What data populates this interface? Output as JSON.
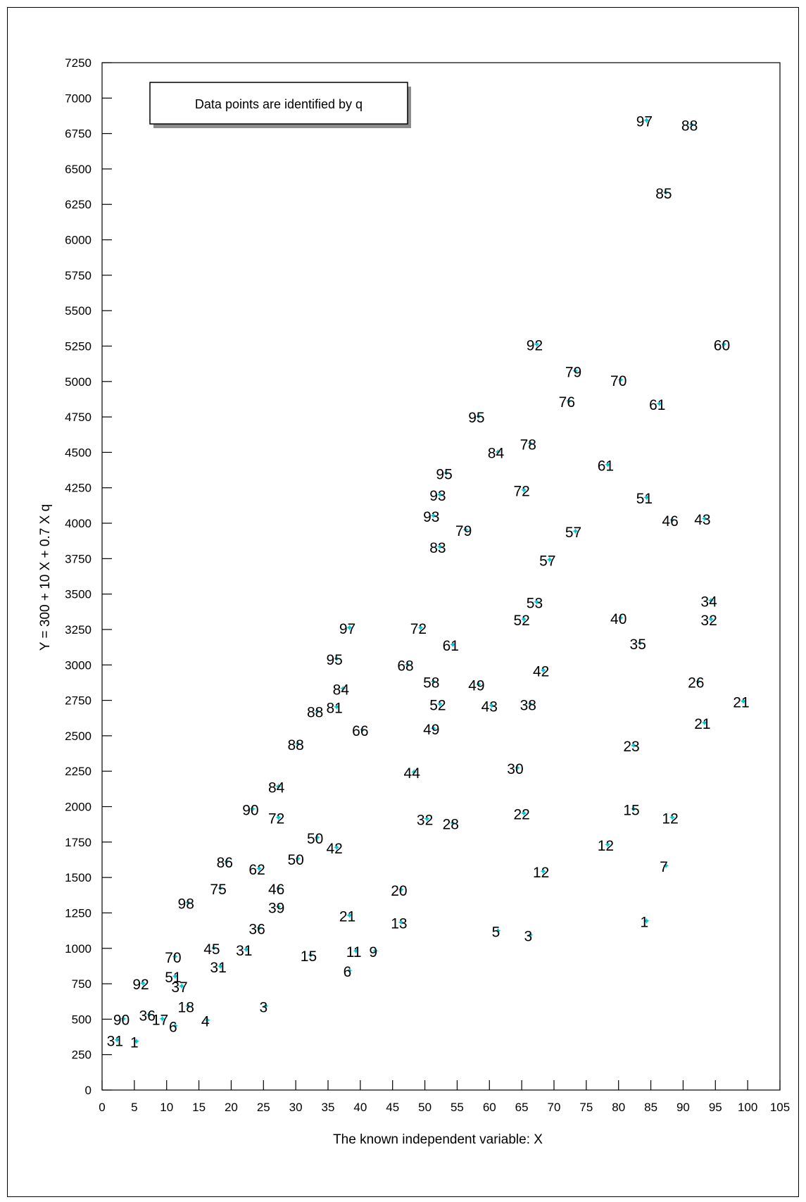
{
  "chart_data": {
    "type": "scatter",
    "title": "",
    "xlabel": "The known independent variable: X",
    "ylabel": "Y = 300 + 10 X + 0.7 X q",
    "xlim": [
      0,
      105
    ],
    "ylim": [
      0,
      7250
    ],
    "x_ticks": [
      0,
      5,
      10,
      15,
      20,
      25,
      30,
      35,
      40,
      45,
      50,
      55,
      60,
      65,
      70,
      75,
      80,
      85,
      90,
      95,
      100,
      105
    ],
    "y_ticks": [
      0,
      250,
      500,
      750,
      1000,
      1250,
      1500,
      1750,
      2000,
      2250,
      2500,
      2750,
      3000,
      3250,
      3500,
      3750,
      4000,
      4250,
      4500,
      4750,
      5000,
      5250,
      5500,
      5750,
      6000,
      6250,
      6500,
      6750,
      7000,
      7250
    ],
    "grid": false,
    "legend": {
      "text": "Data points are identified by q",
      "placement": "top-left"
    },
    "marker_color": "#00c8d8",
    "points": [
      {
        "x": 84,
        "y": 6840,
        "label": "97"
      },
      {
        "x": 91,
        "y": 6810,
        "label": "88"
      },
      {
        "x": 87,
        "y": 6330,
        "label": "85"
      },
      {
        "x": 67,
        "y": 5260,
        "label": "92"
      },
      {
        "x": 96,
        "y": 5260,
        "label": "60"
      },
      {
        "x": 73,
        "y": 5070,
        "label": "79"
      },
      {
        "x": 80,
        "y": 5010,
        "label": "70"
      },
      {
        "x": 72,
        "y": 4860,
        "label": "76"
      },
      {
        "x": 86,
        "y": 4840,
        "label": "61"
      },
      {
        "x": 58,
        "y": 4750,
        "label": "95"
      },
      {
        "x": 66,
        "y": 4560,
        "label": "78"
      },
      {
        "x": 61,
        "y": 4500,
        "label": "84"
      },
      {
        "x": 78,
        "y": 4410,
        "label": "61"
      },
      {
        "x": 53,
        "y": 4350,
        "label": "95"
      },
      {
        "x": 65,
        "y": 4230,
        "label": "72"
      },
      {
        "x": 52,
        "y": 4200,
        "label": "93"
      },
      {
        "x": 84,
        "y": 4180,
        "label": "51"
      },
      {
        "x": 51,
        "y": 4050,
        "label": "93"
      },
      {
        "x": 88,
        "y": 4020,
        "label": "46"
      },
      {
        "x": 93,
        "y": 4030,
        "label": "43"
      },
      {
        "x": 56,
        "y": 3950,
        "label": "79"
      },
      {
        "x": 73,
        "y": 3940,
        "label": "57"
      },
      {
        "x": 52,
        "y": 3830,
        "label": "83"
      },
      {
        "x": 69,
        "y": 3740,
        "label": "57"
      },
      {
        "x": 67,
        "y": 3440,
        "label": "53"
      },
      {
        "x": 94,
        "y": 3450,
        "label": "34"
      },
      {
        "x": 65,
        "y": 3320,
        "label": "52"
      },
      {
        "x": 80,
        "y": 3330,
        "label": "40"
      },
      {
        "x": 94,
        "y": 3320,
        "label": "32"
      },
      {
        "x": 38,
        "y": 3260,
        "label": "97"
      },
      {
        "x": 49,
        "y": 3260,
        "label": "72"
      },
      {
        "x": 83,
        "y": 3150,
        "label": "35"
      },
      {
        "x": 54,
        "y": 3140,
        "label": "61"
      },
      {
        "x": 36,
        "y": 3040,
        "label": "95"
      },
      {
        "x": 47,
        "y": 3000,
        "label": "68"
      },
      {
        "x": 68,
        "y": 2960,
        "label": "42"
      },
      {
        "x": 92,
        "y": 2880,
        "label": "26"
      },
      {
        "x": 51,
        "y": 2880,
        "label": "58"
      },
      {
        "x": 58,
        "y": 2860,
        "label": "49"
      },
      {
        "x": 37,
        "y": 2830,
        "label": "84"
      },
      {
        "x": 99,
        "y": 2740,
        "label": "21"
      },
      {
        "x": 52,
        "y": 2720,
        "label": "52"
      },
      {
        "x": 60,
        "y": 2710,
        "label": "43"
      },
      {
        "x": 66,
        "y": 2720,
        "label": "38"
      },
      {
        "x": 36,
        "y": 2700,
        "label": "81"
      },
      {
        "x": 33,
        "y": 2670,
        "label": "88"
      },
      {
        "x": 93,
        "y": 2590,
        "label": "21"
      },
      {
        "x": 40,
        "y": 2540,
        "label": "66"
      },
      {
        "x": 51,
        "y": 2550,
        "label": "49"
      },
      {
        "x": 30,
        "y": 2440,
        "label": "88"
      },
      {
        "x": 82,
        "y": 2430,
        "label": "23"
      },
      {
        "x": 64,
        "y": 2270,
        "label": "30"
      },
      {
        "x": 48,
        "y": 2240,
        "label": "44"
      },
      {
        "x": 27,
        "y": 2140,
        "label": "84"
      },
      {
        "x": 23,
        "y": 1980,
        "label": "90"
      },
      {
        "x": 82,
        "y": 1980,
        "label": "15"
      },
      {
        "x": 65,
        "y": 1950,
        "label": "22"
      },
      {
        "x": 27,
        "y": 1920,
        "label": "72"
      },
      {
        "x": 50,
        "y": 1910,
        "label": "32"
      },
      {
        "x": 88,
        "y": 1920,
        "label": "12"
      },
      {
        "x": 54,
        "y": 1880,
        "label": "28"
      },
      {
        "x": 33,
        "y": 1780,
        "label": "50"
      },
      {
        "x": 36,
        "y": 1710,
        "label": "42"
      },
      {
        "x": 78,
        "y": 1730,
        "label": "12"
      },
      {
        "x": 19,
        "y": 1610,
        "label": "86"
      },
      {
        "x": 30,
        "y": 1630,
        "label": "50"
      },
      {
        "x": 24,
        "y": 1560,
        "label": "62"
      },
      {
        "x": 87,
        "y": 1580,
        "label": "7"
      },
      {
        "x": 68,
        "y": 1540,
        "label": "12"
      },
      {
        "x": 18,
        "y": 1420,
        "label": "75"
      },
      {
        "x": 27,
        "y": 1420,
        "label": "46"
      },
      {
        "x": 46,
        "y": 1410,
        "label": "20"
      },
      {
        "x": 13,
        "y": 1320,
        "label": "98"
      },
      {
        "x": 27,
        "y": 1290,
        "label": "39"
      },
      {
        "x": 38,
        "y": 1230,
        "label": "21"
      },
      {
        "x": 84,
        "y": 1190,
        "label": "1"
      },
      {
        "x": 46,
        "y": 1180,
        "label": "13"
      },
      {
        "x": 24,
        "y": 1140,
        "label": "36"
      },
      {
        "x": 61,
        "y": 1120,
        "label": "5"
      },
      {
        "x": 66,
        "y": 1090,
        "label": "3"
      },
      {
        "x": 17,
        "y": 1000,
        "label": "45"
      },
      {
        "x": 22,
        "y": 990,
        "label": "31"
      },
      {
        "x": 39,
        "y": 980,
        "label": "11"
      },
      {
        "x": 42,
        "y": 980,
        "label": "9"
      },
      {
        "x": 32,
        "y": 950,
        "label": "15"
      },
      {
        "x": 11,
        "y": 940,
        "label": "70"
      },
      {
        "x": 18,
        "y": 870,
        "label": "31"
      },
      {
        "x": 38,
        "y": 840,
        "label": "6"
      },
      {
        "x": 11,
        "y": 800,
        "label": "51"
      },
      {
        "x": 6,
        "y": 750,
        "label": "92"
      },
      {
        "x": 12,
        "y": 730,
        "label": "37"
      },
      {
        "x": 13,
        "y": 590,
        "label": "18"
      },
      {
        "x": 25,
        "y": 590,
        "label": "3"
      },
      {
        "x": 7,
        "y": 530,
        "label": "36"
      },
      {
        "x": 3,
        "y": 500,
        "label": "90"
      },
      {
        "x": 9,
        "y": 500,
        "label": "17"
      },
      {
        "x": 16,
        "y": 490,
        "label": "4"
      },
      {
        "x": 11,
        "y": 450,
        "label": "6"
      },
      {
        "x": 2,
        "y": 350,
        "label": "31"
      },
      {
        "x": 5,
        "y": 340,
        "label": "1"
      }
    ]
  }
}
